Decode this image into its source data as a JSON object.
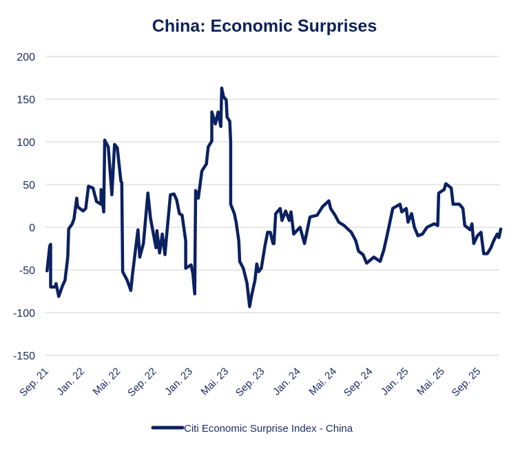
{
  "chart_data": {
    "type": "line",
    "title": "China: Economic Surprises",
    "xlabel": "",
    "ylabel": "",
    "x_unit": "months since Sep. 2021",
    "xlim": [
      0,
      50.5
    ],
    "ylim": [
      -150,
      200
    ],
    "yticks": [
      200,
      150,
      100,
      50,
      0,
      -50,
      -100,
      -150
    ],
    "xtick_labels": [
      "Sep. 21",
      "Jan. 22",
      "Mai. 22",
      "Sep. 22",
      "Jan. 23",
      "Mai. 23",
      "Sep. 23",
      "Jan. 24",
      "Mai. 24",
      "Sep. 24",
      "Jan. 25",
      "Mai. 25",
      "Sep. 25"
    ],
    "xtick_values": [
      0,
      4,
      8,
      12,
      16,
      20,
      24,
      28,
      32,
      36,
      40,
      44,
      48
    ],
    "grid": "horizontal",
    "legend_position": "bottom",
    "colors": {
      "series": "#0b2160",
      "grid": "#d9d9d9"
    },
    "series": [
      {
        "name": "Citi Economic Surprise Index - China",
        "x": [
          0.1,
          0.4,
          0.5,
          0.5,
          1.0,
          1.1,
          1.4,
          1.8,
          2.1,
          2.4,
          2.5,
          2.9,
          3.1,
          3.4,
          3.5,
          4.1,
          4.4,
          4.7,
          5.2,
          5.6,
          6.1,
          6.1,
          6.4,
          6.5,
          6.9,
          7.3,
          7.6,
          7.9,
          8.3,
          8.4,
          8.5,
          9.0,
          9.4,
          9.6,
          10.2,
          10.4,
          10.8,
          11.3,
          11.6,
          12.2,
          12.3,
          12.6,
          12.9,
          13.2,
          13.4,
          13.8,
          14.2,
          14.5,
          14.8,
          15.1,
          15.5,
          15.5,
          16.1,
          16.3,
          16.5,
          16.6,
          16.9,
          17.3,
          17.8,
          18.0,
          18.4,
          18.4,
          18.8,
          19.1,
          19.4,
          19.5,
          19.7,
          20.0,
          20.1,
          20.4,
          20.5,
          20.5,
          20.9,
          21.1,
          21.4,
          21.5,
          21.9,
          22.3,
          22.6,
          22.8,
          23.2,
          23.4,
          23.6,
          23.9,
          24.3,
          24.6,
          24.9,
          25.2,
          25.3,
          25.5,
          26.0,
          26.2,
          26.6,
          27.0,
          27.2,
          27.5,
          28.2,
          28.7,
          29.3,
          30.1,
          30.7,
          31.4,
          31.6,
          32.1,
          32.5,
          33.1,
          33.4,
          33.9,
          34.4,
          34.7,
          35.2,
          35.6,
          36.4,
          37.1,
          37.5,
          37.9,
          38.5,
          39.3,
          39.5,
          40.0,
          40.2,
          40.6,
          40.9,
          41.3,
          41.8,
          42.3,
          43.1,
          43.5,
          43.6,
          44.2,
          44.4,
          45.0,
          45.2,
          45.9,
          46.3,
          46.5,
          47.1,
          47.3,
          47.5,
          47.9,
          48.3,
          48.6,
          49.0,
          49.4,
          49.7,
          50.1,
          50.3,
          50.5
        ],
        "values": [
          -51,
          -22,
          -20,
          -70,
          -70,
          -66,
          -81,
          -69,
          -62,
          -35,
          -2,
          4,
          10,
          34,
          24,
          19,
          22,
          48,
          46,
          30,
          27,
          44,
          18,
          102,
          94,
          38,
          97,
          93,
          54,
          52,
          -52,
          -62,
          -74,
          -54,
          -3,
          -35,
          -19,
          40,
          10,
          -24,
          -4,
          -30,
          -8,
          -32,
          -8,
          38,
          39,
          32,
          16,
          14,
          -16,
          -48,
          -44,
          -54,
          -78,
          43,
          34,
          66,
          74,
          94,
          101,
          135,
          121,
          135,
          118,
          163,
          153,
          149,
          129,
          124,
          99,
          27,
          16,
          6,
          -16,
          -40,
          -48,
          -65,
          -93,
          -81,
          -62,
          -43,
          -52,
          -48,
          -22,
          -6,
          -6,
          -19,
          -19,
          16,
          22,
          8,
          19,
          8,
          18,
          -8,
          0,
          -19,
          12,
          14,
          24,
          31,
          22,
          14,
          6,
          2,
          -1,
          -6,
          -16,
          -28,
          -32,
          -42,
          -35,
          -40,
          -27,
          -8,
          22,
          27,
          18,
          22,
          6,
          16,
          0,
          -10,
          -8,
          0,
          4,
          2,
          40,
          44,
          51,
          46,
          27,
          27,
          22,
          2,
          -3,
          4,
          -19,
          -10,
          -6,
          -31,
          -31,
          -24,
          -16,
          -8,
          -12,
          -2
        ]
      }
    ]
  }
}
